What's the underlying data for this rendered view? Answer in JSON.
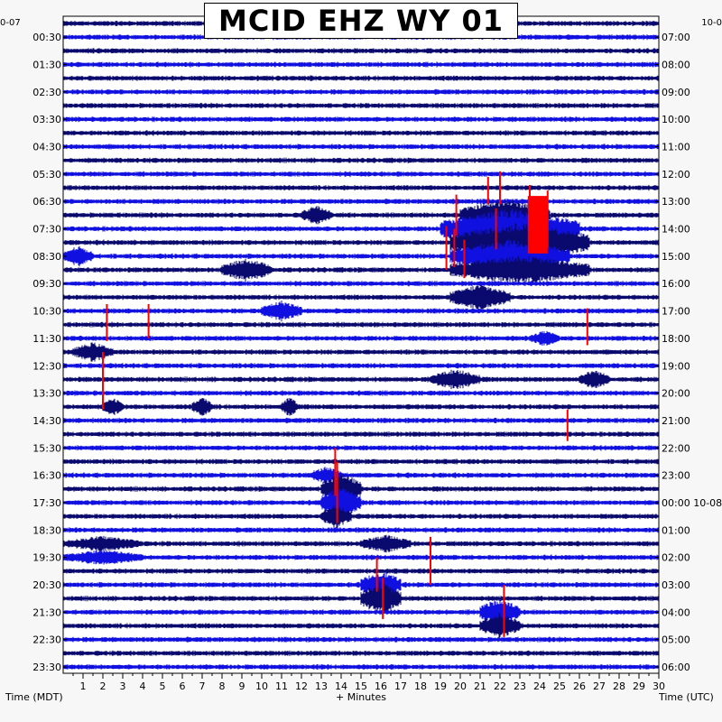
{
  "chart_data": {
    "type": "line",
    "title": "MCID EHZ WY 01",
    "header_left": "0-07",
    "header_right": "10-0",
    "xlabel": "+ Minutes",
    "left_axis_label": "Time (MDT)",
    "right_axis_label": "Time (UTC)",
    "xlim": [
      0,
      30
    ],
    "x_ticks": [
      "1",
      "2",
      "3",
      "4",
      "5",
      "6",
      "7",
      "8",
      "9",
      "10",
      "11",
      "12",
      "13",
      "14",
      "15",
      "16",
      "17",
      "18",
      "19",
      "20",
      "21",
      "22",
      "23",
      "24",
      "25",
      "26",
      "27",
      "28",
      "29",
      "30"
    ],
    "left_times": [
      "00:30",
      "01:30",
      "02:30",
      "03:30",
      "04:30",
      "05:30",
      "06:30",
      "07:30",
      "08:30",
      "09:30",
      "10:30",
      "11:30",
      "12:30",
      "13:30",
      "14:30",
      "15:30",
      "16:30",
      "17:30",
      "18:30",
      "19:30",
      "20:30",
      "21:30",
      "22:30",
      "23:30"
    ],
    "right_times": [
      "07:00",
      "08:00",
      "09:00",
      "10:00",
      "11:00",
      "12:00",
      "13:00",
      "14:00",
      "15:00",
      "16:00",
      "17:00",
      "18:00",
      "19:00",
      "20:00",
      "21:00",
      "22:00",
      "23:00",
      "00:00 10-08",
      "01:00",
      "02:00",
      "03:00",
      "04:00",
      "05:00",
      "06:00"
    ],
    "trace_count": 48,
    "colors": {
      "trace_dark": "#0a0a6e",
      "trace_blue": "#1010e0",
      "clipped": "#ff0000",
      "background": "#ffffff"
    },
    "events": [
      {
        "trace": 14,
        "start_min": 20,
        "end_min": 24.5,
        "amplitude": 2.5
      },
      {
        "trace": 15,
        "start_min": 19,
        "end_min": 26,
        "amplitude": 3
      },
      {
        "trace": 16,
        "start_min": 19.5,
        "end_min": 26.5,
        "amplitude": 3
      },
      {
        "trace": 17,
        "start_min": 19.5,
        "end_min": 25.5,
        "amplitude": 2.5
      },
      {
        "trace": 18,
        "start_min": 19.5,
        "end_min": 26.5,
        "amplitude": 2.2
      },
      {
        "trace": 20,
        "start_min": 19.5,
        "end_min": 22.5,
        "amplitude": 2
      },
      {
        "trace": 14,
        "start_min": 12,
        "end_min": 13.5,
        "amplitude": 1.5
      },
      {
        "trace": 17,
        "start_min": 0,
        "end_min": 1.5,
        "amplitude": 1.6
      },
      {
        "trace": 18,
        "start_min": 8,
        "end_min": 10.5,
        "amplitude": 1.8
      },
      {
        "trace": 21,
        "start_min": 10,
        "end_min": 12,
        "amplitude": 1.6
      },
      {
        "trace": 23,
        "start_min": 23.5,
        "end_min": 25,
        "amplitude": 1.2
      },
      {
        "trace": 24,
        "start_min": 0.5,
        "end_min": 2.5,
        "amplitude": 1.5
      },
      {
        "trace": 26,
        "start_min": 18.5,
        "end_min": 21,
        "amplitude": 1.6
      },
      {
        "trace": 26,
        "start_min": 26,
        "end_min": 27.5,
        "amplitude": 1.5
      },
      {
        "trace": 28,
        "start_min": 2,
        "end_min": 3,
        "amplitude": 1.5
      },
      {
        "trace": 28,
        "start_min": 6.5,
        "end_min": 7.5,
        "amplitude": 1.5
      },
      {
        "trace": 28,
        "start_min": 11,
        "end_min": 11.8,
        "amplitude": 1.5
      },
      {
        "trace": 33,
        "start_min": 12.5,
        "end_min": 14,
        "amplitude": 1.4
      },
      {
        "trace": 34,
        "start_min": 13,
        "end_min": 15,
        "amplitude": 2.5
      },
      {
        "trace": 35,
        "start_min": 13,
        "end_min": 15,
        "amplitude": 2.5
      },
      {
        "trace": 36,
        "start_min": 13,
        "end_min": 14.5,
        "amplitude": 1.8
      },
      {
        "trace": 38,
        "start_min": 0,
        "end_min": 4,
        "amplitude": 1.2
      },
      {
        "trace": 39,
        "start_min": 0,
        "end_min": 4,
        "amplitude": 1.2
      },
      {
        "trace": 38,
        "start_min": 15,
        "end_min": 17.5,
        "amplitude": 1.4
      },
      {
        "trace": 41,
        "start_min": 15,
        "end_min": 17,
        "amplitude": 2.2
      },
      {
        "trace": 42,
        "start_min": 15,
        "end_min": 17,
        "amplitude": 2.5
      },
      {
        "trace": 43,
        "start_min": 21,
        "end_min": 23,
        "amplitude": 2.2
      },
      {
        "trace": 44,
        "start_min": 21,
        "end_min": 23,
        "amplitude": 2
      }
    ],
    "clipped_spikes": [
      {
        "trace": 13,
        "minute": 22,
        "up": 2.2,
        "down": 0.2
      },
      {
        "trace": 13,
        "minute": 21.4,
        "up": 1.8,
        "down": 0.2
      },
      {
        "trace": 13,
        "minute": 23.5,
        "up": 1.2,
        "down": 3.6
      },
      {
        "trace": 13,
        "minute": 24.4,
        "up": 0.8,
        "down": 3.4
      },
      {
        "trace": 14,
        "minute": 19.8,
        "up": 1.5,
        "down": 1.5
      },
      {
        "trace": 15,
        "minute": 21.8,
        "up": 1.5,
        "down": 1.5
      },
      {
        "trace": 16,
        "minute": 19.3,
        "up": 1.2,
        "down": 2
      },
      {
        "trace": 16,
        "minute": 19.7,
        "up": 1,
        "down": 1.8
      },
      {
        "trace": 17,
        "minute": 20.2,
        "up": 1.2,
        "down": 1.6
      },
      {
        "trace": 22,
        "minute": 2.2,
        "up": 1.5,
        "down": 1.2
      },
      {
        "trace": 22,
        "minute": 4.3,
        "up": 1.5,
        "down": 1
      },
      {
        "trace": 22,
        "minute": 26.4,
        "up": 1.2,
        "down": 1.5
      },
      {
        "trace": 25,
        "minute": 2,
        "up": 1,
        "down": 3.2
      },
      {
        "trace": 29,
        "minute": 25.4,
        "up": 0.8,
        "down": 1.5
      },
      {
        "trace": 32,
        "minute": 13.7,
        "up": 1,
        "down": 2.5
      },
      {
        "trace": 34,
        "minute": 13.8,
        "up": 2,
        "down": 2.5
      },
      {
        "trace": 38,
        "minute": 18.5,
        "up": 0.5,
        "down": 3
      },
      {
        "trace": 40,
        "minute": 15.8,
        "up": 1,
        "down": 1.5
      },
      {
        "trace": 42,
        "minute": 16.1,
        "up": 1.5,
        "down": 1.5
      },
      {
        "trace": 43,
        "minute": 22.2,
        "up": 2,
        "down": 1.8
      }
    ],
    "clipped_blocks": [
      {
        "trace": 13,
        "start_min": 23.4,
        "end_min": 24.4,
        "up": 0.4,
        "down": 3.8
      }
    ]
  }
}
